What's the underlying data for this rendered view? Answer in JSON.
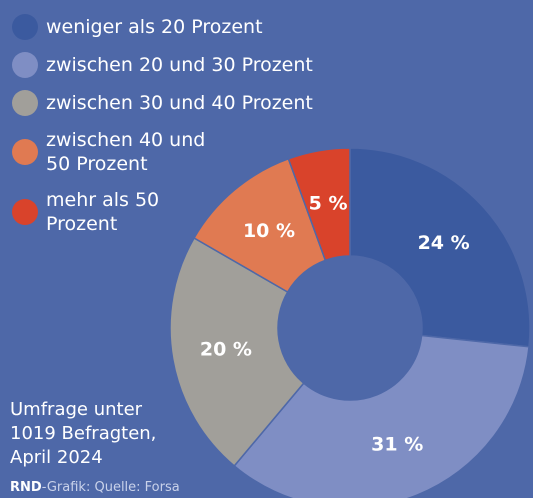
{
  "chart_data": {
    "type": "donut",
    "categories": [
      "weniger als 20 Prozent",
      "zwischen 20 und 30 Prozent",
      "zwischen 30 und 40 Prozent",
      "zwischen 40 und 50 Prozent",
      "mehr als 50 Prozent"
    ],
    "values": [
      24,
      31,
      20,
      10,
      5
    ],
    "value_labels": [
      "24 %",
      "31 %",
      "20 %",
      "10 %",
      "5 %"
    ],
    "colors": [
      "#3b5a9f",
      "#7f8ec4",
      "#a19f9a",
      "#e07a52",
      "#d9432b"
    ],
    "note": "Umfrage unter 1019 Befragten, April 2024",
    "source_brand": "RND",
    "source": "-Grafik: Quelle: Forsa"
  }
}
